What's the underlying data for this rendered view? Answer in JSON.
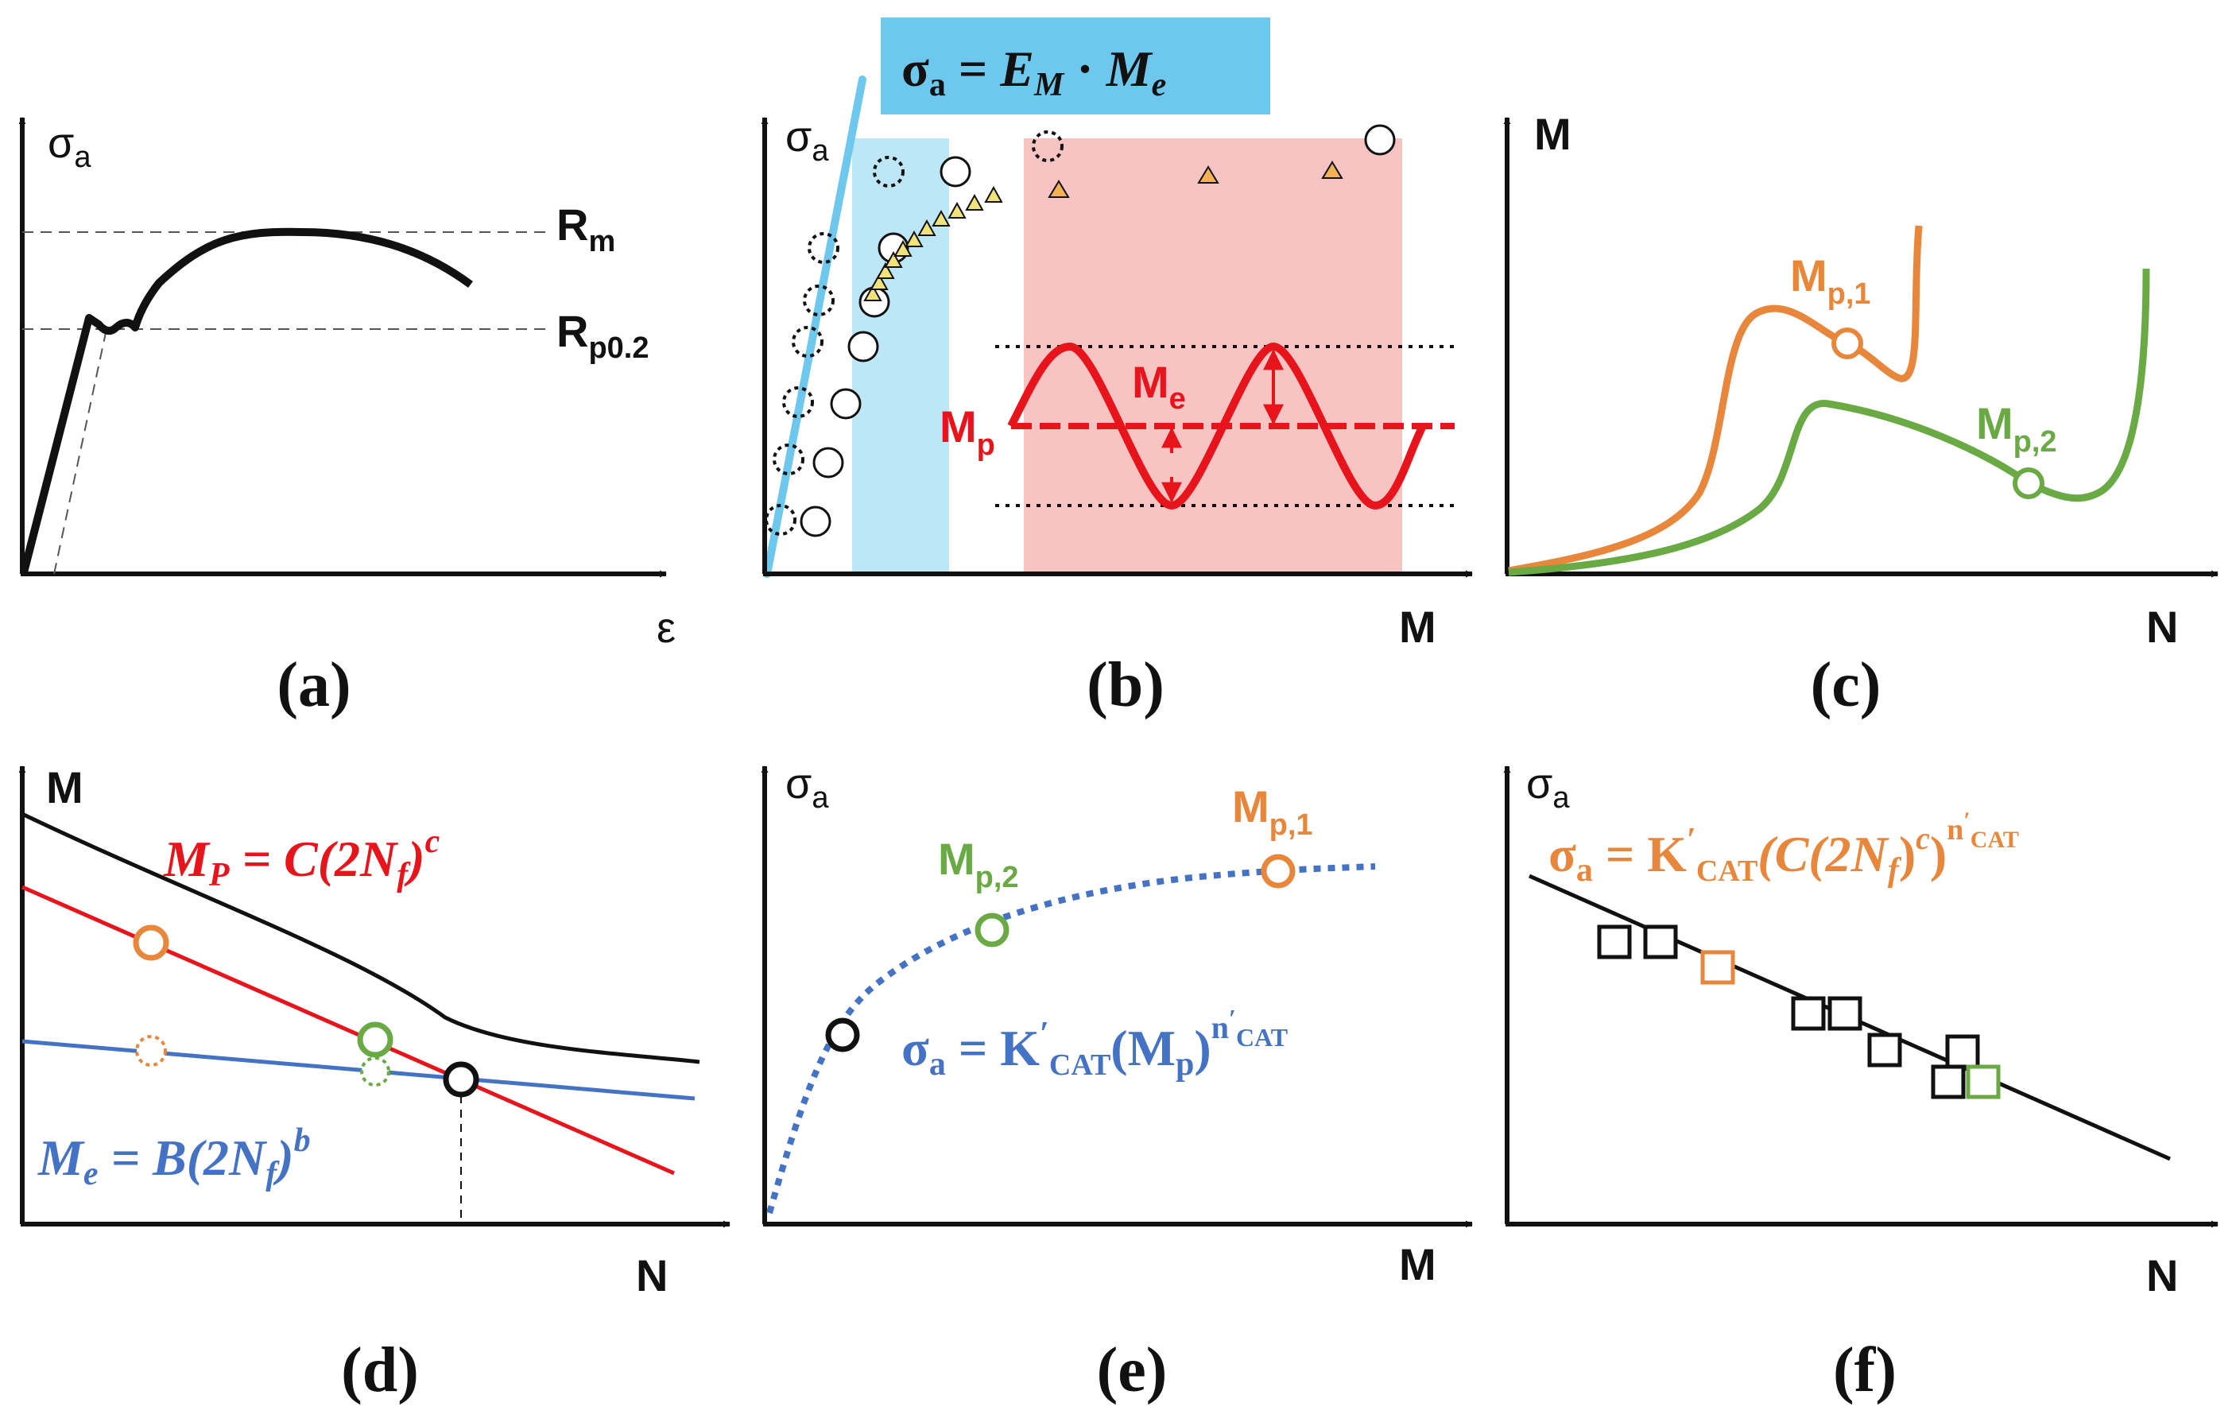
{
  "colors": {
    "black": "#111111",
    "orange": "#E8873C",
    "green": "#6AAA45",
    "blue": "#4472C4",
    "red": "#E8141B",
    "lightblue": "#6EC8EE",
    "cyanbox": "#BDE7F6",
    "pinkbox": "#F7C3C3",
    "triangle": "#F2E27A",
    "triangle_orange": "#F5B155"
  },
  "panels": {
    "a": {
      "caption": "(a)",
      "y_symbol": "σ",
      "y_sub": "a",
      "x_symbol": "ε",
      "rm_main": "R",
      "rm_sub": "m",
      "rp_main": "R",
      "rp_sub": "p0.2"
    },
    "b": {
      "caption": "(b)",
      "y_symbol": "σ",
      "y_sub": "a",
      "x_label": "M",
      "equation": {
        "lhs": "σ",
        "lhs_sub": "a",
        "eq": " = ",
        "e": "E",
        "e_sub": "M",
        "dot": " · ",
        "m": "M",
        "m_sub": "e"
      },
      "me_main": "M",
      "me_sub": "e",
      "mp_main": "M",
      "mp_sub": "p"
    },
    "c": {
      "caption": "(c)",
      "y_label": "M",
      "x_label": "N",
      "mp1_main": "M",
      "mp1_sub": "p,1",
      "mp2_main": "M",
      "mp2_sub": "p,2"
    },
    "d": {
      "caption": "(d)",
      "y_label": "M",
      "x_label": "N",
      "eq_red": {
        "m": "M",
        "m_sub": "P",
        "body": " = C(2N",
        "nf_sub": "f",
        "close": ")",
        "exp": "c"
      },
      "eq_blue": {
        "m": "M",
        "m_sub": "e",
        "body": " = B(2N",
        "nf_sub": "f",
        "close": ")",
        "exp": "b"
      }
    },
    "e": {
      "caption": "(e)",
      "y_symbol": "σ",
      "y_sub": "a",
      "x_label": "M",
      "mp1_main": "M",
      "mp1_sub": "p,1",
      "mp2_main": "M",
      "mp2_sub": "p,2",
      "equation": {
        "lhs": "σ",
        "lhs_sub": "a",
        "eq": " = K",
        "prime": "′",
        "k_sub": "CAT",
        "body": "(M",
        "mp_sub": "p",
        "close": ")",
        "exp": "n",
        "exp_prime": "′",
        "exp_sub": "CAT"
      }
    },
    "f": {
      "caption": "(f)",
      "y_symbol": "σ",
      "y_sub": "a",
      "x_label": "N",
      "equation": {
        "lhs": "σ",
        "lhs_sub": "a",
        "eq": " = K",
        "prime": "′",
        "k_sub": "CAT",
        "body": "(C(2N",
        "nf_sub": "f",
        "close1": ")",
        "c_exp": "c",
        "close2": ")",
        "exp": "n",
        "exp_prime": "′",
        "exp_sub": "CAT"
      }
    }
  }
}
